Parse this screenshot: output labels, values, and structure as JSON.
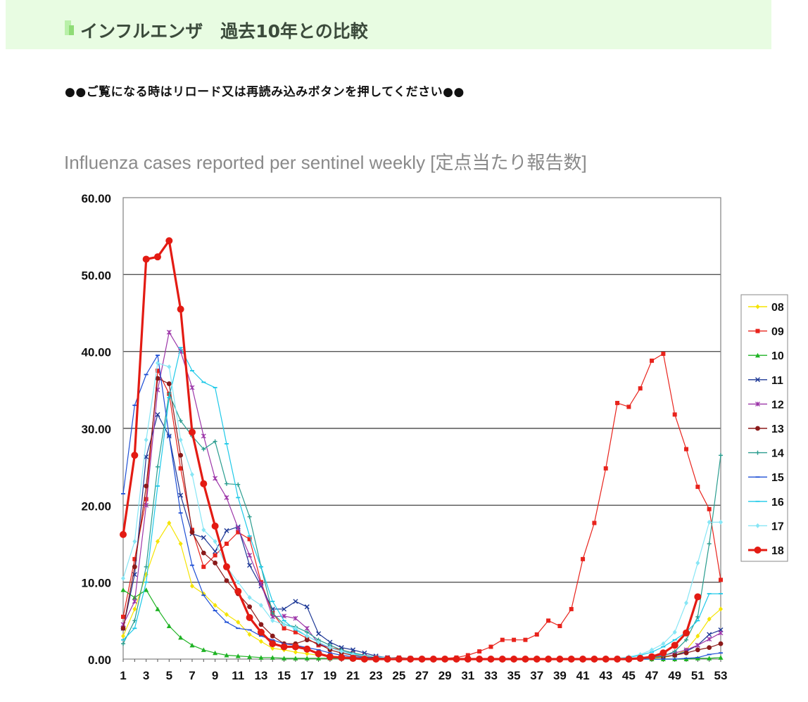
{
  "header": {
    "title": "インフルエンザ　過去10年との比較"
  },
  "notice": "●●ご覧になる時はリロード又は再読み込みボタンを押してください●●",
  "caption": "Influenza cases reported per sentinel weekly [定点当たり報告数]",
  "chart_data": {
    "type": "line",
    "title": "",
    "xlabel": "",
    "ylabel": "",
    "x": [
      1,
      2,
      3,
      4,
      5,
      6,
      7,
      8,
      9,
      10,
      11,
      12,
      13,
      14,
      15,
      16,
      17,
      18,
      19,
      20,
      21,
      22,
      23,
      24,
      25,
      26,
      27,
      28,
      29,
      30,
      31,
      32,
      33,
      34,
      35,
      36,
      37,
      38,
      39,
      40,
      41,
      42,
      43,
      44,
      45,
      46,
      47,
      48,
      49,
      50,
      51,
      52,
      53
    ],
    "xticks": [
      1,
      3,
      5,
      7,
      9,
      11,
      13,
      15,
      17,
      19,
      21,
      23,
      25,
      27,
      29,
      31,
      33,
      35,
      37,
      39,
      41,
      43,
      45,
      47,
      49,
      51,
      53
    ],
    "ylim": [
      0,
      60
    ],
    "yticks": [
      "0.00",
      "10.00",
      "20.00",
      "30.00",
      "40.00",
      "50.00",
      "60.00"
    ],
    "grid": "horizontal",
    "legend_position": "right",
    "series": [
      {
        "name": "08",
        "color": "#f5e400",
        "marker": "diamond",
        "width": 1.2,
        "values": [
          3,
          6.5,
          11,
          15.3,
          17.7,
          15,
          9.5,
          8.5,
          7,
          5.8,
          4.8,
          3.2,
          2.3,
          1.4,
          1.2,
          0.9,
          0.7,
          0.5,
          0.4,
          0.3,
          0.2,
          0.1,
          0.1,
          0.1,
          0.1,
          0,
          0,
          0,
          0,
          0,
          0,
          0,
          0,
          0,
          0,
          0,
          0,
          0,
          0,
          0,
          0,
          0,
          0,
          0,
          0,
          0,
          0.1,
          0.2,
          0.5,
          1.2,
          3,
          5.2,
          6.5
        ]
      },
      {
        "name": "09",
        "color": "#e8231c",
        "marker": "square",
        "width": 1.2,
        "values": [
          5.5,
          13,
          20.8,
          37.5,
          34.5,
          24.8,
          16.8,
          12,
          13.5,
          15,
          16.5,
          15.6,
          10,
          6,
          4,
          3.5,
          2.7,
          1.8,
          1.5,
          1.2,
          0.8,
          0.5,
          0.3,
          0.2,
          0.2,
          0.1,
          0.1,
          0.1,
          0.1,
          0.2,
          0.5,
          1,
          1.6,
          2.5,
          2.5,
          2.5,
          3.2,
          5,
          4.3,
          6.5,
          13,
          17.7,
          24.8,
          33.3,
          32.8,
          35.2,
          38.8,
          39.7,
          31.8,
          27.3,
          22.4,
          19.5,
          10.3
        ]
      },
      {
        "name": "10",
        "color": "#1fb324",
        "marker": "triangle",
        "width": 1.2,
        "values": [
          9,
          8,
          9,
          6.5,
          4.3,
          2.8,
          1.8,
          1.2,
          0.8,
          0.5,
          0.4,
          0.3,
          0.2,
          0.2,
          0.1,
          0.1,
          0.1,
          0.1,
          0.1,
          0.1,
          0,
          0,
          0,
          0,
          0,
          0,
          0,
          0,
          0,
          0,
          0,
          0,
          0,
          0,
          0,
          0,
          0,
          0,
          0,
          0,
          0,
          0,
          0,
          0,
          0,
          0,
          0,
          0,
          0,
          0,
          0.1,
          0.1,
          0.2
        ]
      },
      {
        "name": "11",
        "color": "#1d3896",
        "marker": "x",
        "width": 1.2,
        "values": [
          4,
          11,
          26.3,
          31.8,
          29,
          21.3,
          16.3,
          15.8,
          14,
          16.7,
          17.2,
          12.2,
          9.5,
          6.5,
          6.5,
          7.5,
          6.8,
          3.3,
          2.2,
          1.5,
          1.2,
          0.8,
          0.4,
          0.2,
          0.1,
          0.1,
          0,
          0,
          0,
          0,
          0,
          0,
          0,
          0,
          0,
          0,
          0,
          0,
          0,
          0,
          0,
          0,
          0,
          0,
          0.1,
          0.1,
          0.2,
          0.3,
          0.5,
          1,
          1.8,
          3.2,
          3.8
        ]
      },
      {
        "name": "12",
        "color": "#9c35a8",
        "marker": "star",
        "width": 1.2,
        "values": [
          4.5,
          7.5,
          20,
          35,
          42.5,
          40,
          35.3,
          29,
          23.5,
          21,
          17,
          13.5,
          9.8,
          5.5,
          5.6,
          5.3,
          4,
          2,
          1.5,
          1,
          0.7,
          0.4,
          0.2,
          0.1,
          0.1,
          0,
          0,
          0,
          0,
          0,
          0,
          0,
          0,
          0,
          0,
          0,
          0,
          0,
          0,
          0,
          0,
          0,
          0,
          0.1,
          0.1,
          0.2,
          0.3,
          0.5,
          0.8,
          1.2,
          1.8,
          2.6,
          3.4
        ]
      },
      {
        "name": "13",
        "color": "#8b1a1a",
        "marker": "circle",
        "width": 1.2,
        "values": [
          4,
          12,
          22.5,
          36.5,
          35.8,
          26.5,
          16.5,
          13.8,
          12.5,
          10.2,
          8.5,
          6.8,
          4.5,
          3,
          2,
          2,
          2.5,
          2,
          1.2,
          0.8,
          0.5,
          0.3,
          0.2,
          0.1,
          0.1,
          0,
          0,
          0,
          0,
          0,
          0,
          0,
          0,
          0,
          0,
          0,
          0,
          0,
          0,
          0,
          0,
          0,
          0,
          0,
          0,
          0.1,
          0.2,
          0.3,
          0.5,
          0.8,
          1.2,
          1.5,
          2
        ]
      },
      {
        "name": "14",
        "color": "#2a9d8f",
        "marker": "plus",
        "width": 1.2,
        "values": [
          2,
          5,
          12,
          25,
          34.5,
          31,
          29,
          27.3,
          28.3,
          22.8,
          22.7,
          18.5,
          12,
          6,
          4.5,
          4.2,
          3.5,
          2.5,
          1.8,
          1.2,
          0.8,
          0.5,
          0.3,
          0.2,
          0.1,
          0.1,
          0,
          0,
          0,
          0,
          0,
          0,
          0,
          0,
          0,
          0,
          0,
          0,
          0,
          0,
          0,
          0,
          0,
          0,
          0,
          0.1,
          0.2,
          0.4,
          1,
          2.5,
          5.5,
          15,
          26.5
        ]
      },
      {
        "name": "15",
        "color": "#1e4fd6",
        "marker": "dash",
        "width": 1.2,
        "values": [
          21.5,
          33,
          37,
          39.5,
          29,
          19,
          12.2,
          8.3,
          6.3,
          4.8,
          4,
          3.8,
          3,
          2.5,
          2,
          1.8,
          1.5,
          1.2,
          0.8,
          0.5,
          0.3,
          0.2,
          0.1,
          0.1,
          0,
          0,
          0,
          0,
          0,
          0,
          0,
          0,
          0,
          0,
          0,
          0,
          0,
          0,
          0,
          0,
          0,
          0,
          0,
          0,
          0,
          0,
          0,
          0,
          0,
          0.1,
          0.2,
          0.6,
          0.8
        ]
      },
      {
        "name": "16",
        "color": "#1ec9e8",
        "marker": "dash",
        "width": 1.2,
        "values": [
          2.5,
          4,
          10,
          22.5,
          34,
          40.5,
          37.5,
          36,
          35.3,
          28,
          21,
          16,
          12,
          7.5,
          5,
          3.8,
          3,
          2.2,
          1.5,
          1,
          0.7,
          0.4,
          0.3,
          0.2,
          0.1,
          0.1,
          0,
          0,
          0,
          0,
          0,
          0,
          0,
          0,
          0,
          0,
          0,
          0,
          0,
          0,
          0,
          0,
          0,
          0.1,
          0.2,
          0.5,
          0.9,
          1.6,
          2.5,
          3.5,
          5,
          8.5,
          8.5
        ]
      },
      {
        "name": "17",
        "color": "#87e6f5",
        "marker": "diamond",
        "width": 1.2,
        "values": [
          10.5,
          15.3,
          28.5,
          38.5,
          38,
          28.5,
          24,
          16.8,
          15.3,
          12,
          10,
          8,
          7,
          5,
          4.5,
          4,
          3,
          2.2,
          1.5,
          1,
          0.6,
          0.4,
          0.3,
          0.2,
          0.1,
          0.1,
          0,
          0,
          0,
          0,
          0,
          0,
          0,
          0,
          0,
          0,
          0,
          0,
          0,
          0,
          0,
          0,
          0,
          0.1,
          0.3,
          0.6,
          1.2,
          2,
          3.5,
          7.3,
          12.5,
          17.8,
          17.8
        ]
      },
      {
        "name": "18",
        "color": "#e31b13",
        "marker": "circle",
        "width": 3.2,
        "values": [
          16.2,
          26.5,
          52,
          52.3,
          54.4,
          45.5,
          29.5,
          22.8,
          17.3,
          12,
          8.8,
          5.4,
          3.5,
          2,
          1.6,
          1.6,
          1.3,
          0.7,
          0.3,
          0.2,
          0.1,
          0,
          0,
          0,
          0,
          0,
          0,
          0,
          0,
          0,
          0,
          0,
          0,
          0,
          0,
          0,
          0,
          0,
          0,
          0,
          0,
          0,
          0,
          0,
          0,
          0.1,
          0.3,
          0.8,
          1.8,
          3.4,
          8.1,
          null,
          null
        ]
      }
    ]
  }
}
